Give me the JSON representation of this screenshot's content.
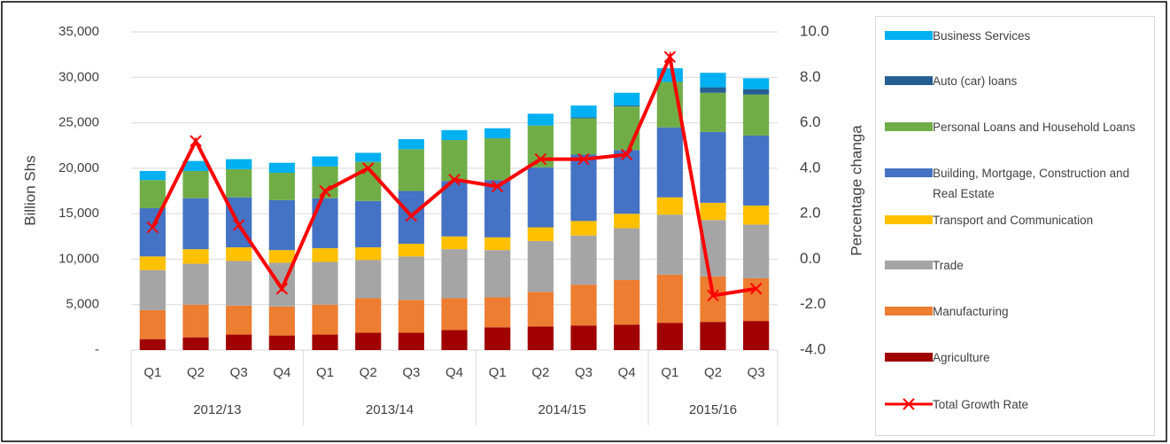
{
  "chart_data": {
    "type": "bar",
    "stacked": true,
    "y_label": "Billion Shs",
    "y2_label": "Percentage changa",
    "groups": [
      {
        "name": "2012/13",
        "categories": [
          "Q1",
          "Q2",
          "Q3",
          "Q4"
        ]
      },
      {
        "name": "2013/14",
        "categories": [
          "Q1",
          "Q2",
          "Q3",
          "Q4"
        ]
      },
      {
        "name": "2014/15",
        "categories": [
          "Q1",
          "Q2",
          "Q3",
          "Q4"
        ]
      },
      {
        "name": "2015/16",
        "categories": [
          "Q1",
          "Q2",
          "Q3"
        ]
      }
    ],
    "ylim": [
      0,
      35000
    ],
    "yticks": [
      {
        "value": 0,
        "label": "-"
      },
      {
        "value": 5000,
        "label": "5,000"
      },
      {
        "value": 10000,
        "label": "10,000"
      },
      {
        "value": 15000,
        "label": "15,000"
      },
      {
        "value": 20000,
        "label": "20,000"
      },
      {
        "value": 25000,
        "label": "25,000"
      },
      {
        "value": 30000,
        "label": "30,000"
      },
      {
        "value": 35000,
        "label": "35,000"
      }
    ],
    "y2lim": [
      -4,
      10
    ],
    "y2ticks": [
      {
        "value": -4,
        "label": "-4.0"
      },
      {
        "value": -2,
        "label": "-2.0"
      },
      {
        "value": 0,
        "label": "0.0"
      },
      {
        "value": 2,
        "label": "2.0"
      },
      {
        "value": 4,
        "label": "4.0"
      },
      {
        "value": 6,
        "label": "6.0"
      },
      {
        "value": 8,
        "label": "8.0"
      },
      {
        "value": 10,
        "label": "10.0"
      }
    ],
    "grid": true,
    "legend": "right",
    "series": [
      {
        "name": "Agriculture",
        "color": "#a00000",
        "values": [
          1200,
          1400,
          1700,
          1600,
          1700,
          1900,
          1900,
          2200,
          2500,
          2600,
          2700,
          2800,
          3000,
          3100,
          3200
        ]
      },
      {
        "name": "Manufacturing",
        "color": "#ed7d31",
        "values": [
          3200,
          3600,
          3200,
          3200,
          3300,
          3800,
          3600,
          3500,
          3300,
          3800,
          4500,
          4900,
          5300,
          5000,
          4700
        ]
      },
      {
        "name": "Trade",
        "color": "#a5a5a5",
        "values": [
          4400,
          4500,
          4900,
          4800,
          4700,
          4200,
          4800,
          5400,
          5200,
          5600,
          5400,
          5700,
          6600,
          6200,
          5900
        ]
      },
      {
        "name": "Transport and Communication",
        "color": "#ffc000",
        "values": [
          1500,
          1600,
          1500,
          1400,
          1500,
          1400,
          1400,
          1400,
          1400,
          1500,
          1600,
          1600,
          1900,
          1900,
          2100
        ]
      },
      {
        "name": "Building, Mortgage, Construction and Real Estate",
        "color": "#4472c4",
        "values": [
          5300,
          5600,
          5500,
          5500,
          5500,
          5100,
          5800,
          6100,
          6300,
          6600,
          7300,
          7000,
          7700,
          7800,
          7700
        ]
      },
      {
        "name": "Personal Loans and Household Loans",
        "color": "#70ad47",
        "values": [
          3100,
          3000,
          3100,
          3000,
          3500,
          4300,
          4600,
          4500,
          4600,
          4600,
          4000,
          4800,
          5000,
          4300,
          4500
        ]
      },
      {
        "name": "Auto (car) loans",
        "color": "#255e91",
        "values": [
          0,
          0,
          0,
          0,
          0,
          0,
          0,
          0,
          0,
          0,
          100,
          100,
          0,
          600,
          600
        ]
      },
      {
        "name": "Business Services",
        "color": "#00b0f0",
        "values": [
          1000,
          1100,
          1100,
          1100,
          1100,
          1000,
          1100,
          1100,
          1100,
          1300,
          1300,
          1400,
          1500,
          1600,
          1200
        ]
      },
      {
        "name": "Total Growth Rate",
        "color": "#ff0000",
        "type": "line",
        "axis": "y2",
        "values": [
          1.4,
          5.2,
          1.5,
          -1.3,
          3.0,
          4.0,
          1.9,
          3.5,
          3.2,
          4.4,
          4.4,
          4.6,
          8.9,
          -1.6,
          -1.3
        ]
      }
    ]
  }
}
